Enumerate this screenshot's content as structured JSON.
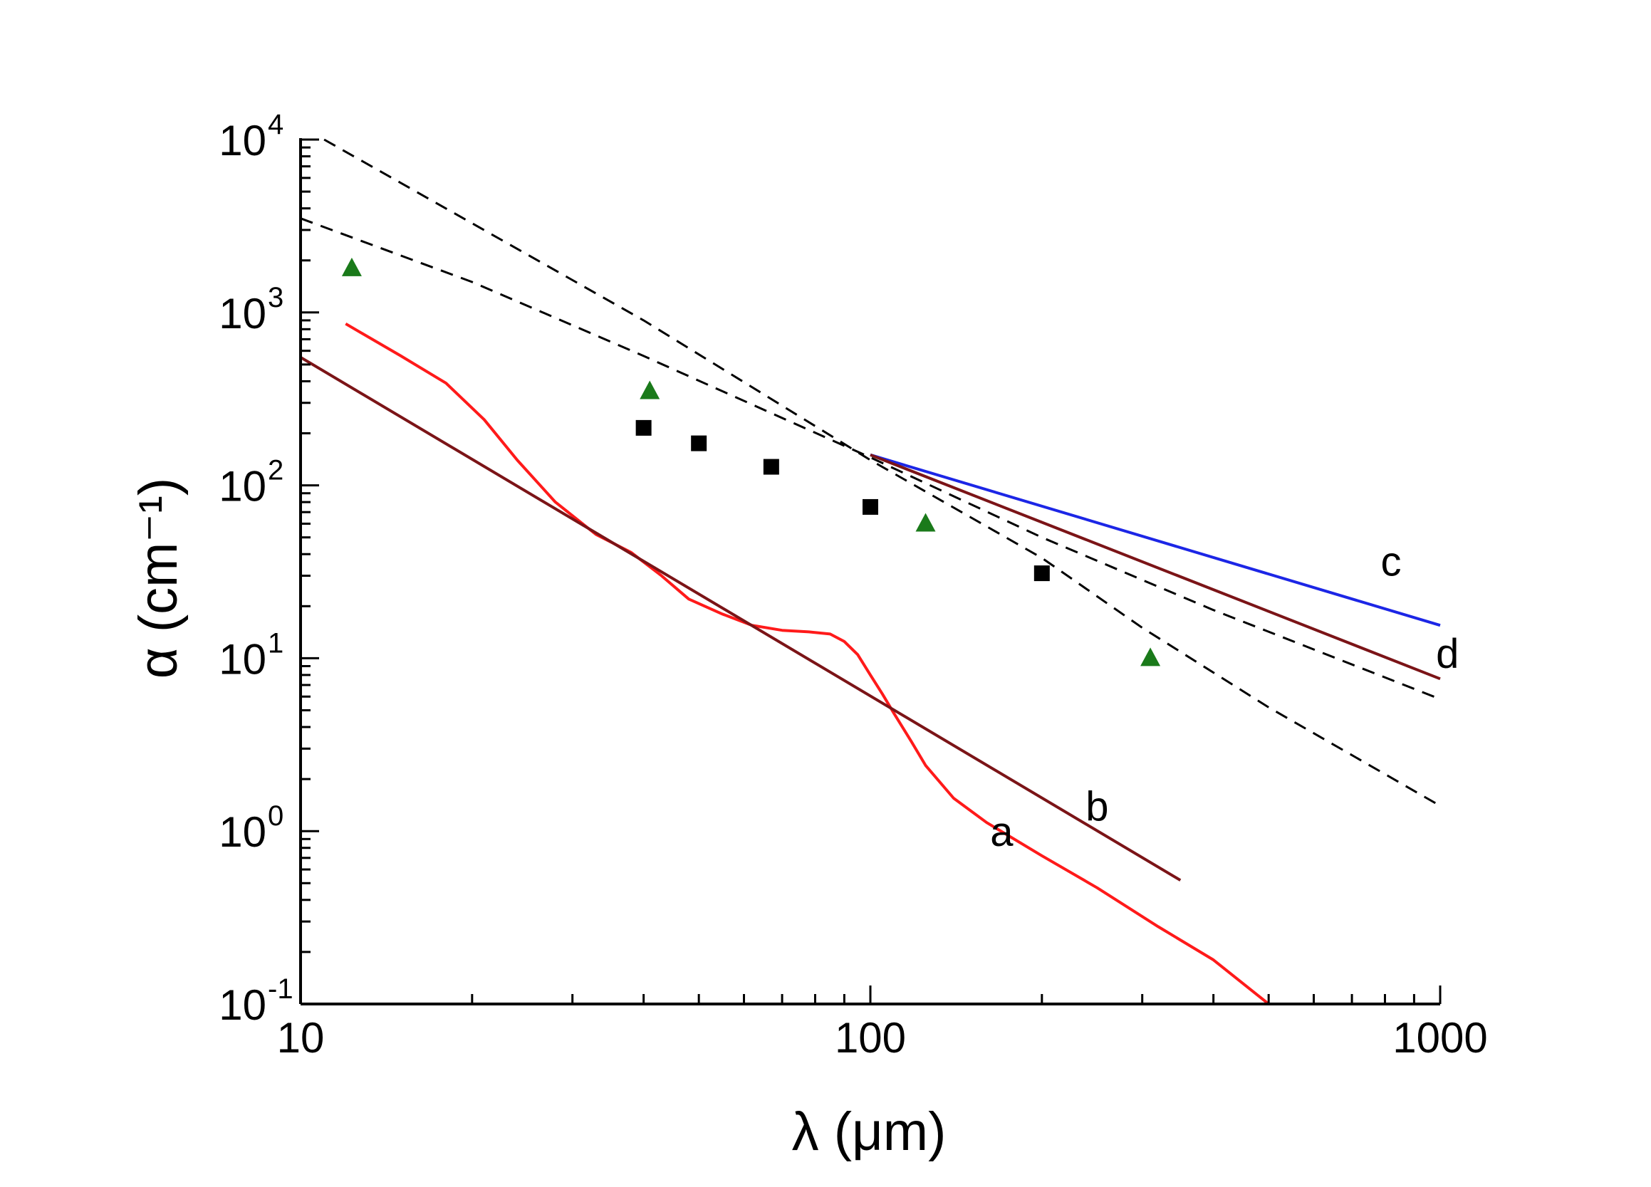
{
  "chart_data": {
    "type": "line",
    "title": "",
    "xlabel": "λ (μm)",
    "ylabel": "α (cm⁻¹)",
    "xscale": "log",
    "yscale": "log",
    "xlim": [
      10,
      1000
    ],
    "ylim": [
      0.1,
      10000
    ],
    "x_ticks": [
      {
        "value": 10,
        "label": "10"
      },
      {
        "value": 100,
        "label": "100"
      },
      {
        "value": 1000,
        "label": "1000"
      }
    ],
    "y_ticks": [
      {
        "value": 0.1,
        "base": "10",
        "exp": "-1"
      },
      {
        "value": 1,
        "base": "10",
        "exp": "0"
      },
      {
        "value": 10,
        "base": "10",
        "exp": "1"
      },
      {
        "value": 100,
        "base": "10",
        "exp": "2"
      },
      {
        "value": 1000,
        "base": "10",
        "exp": "3"
      },
      {
        "value": 10000,
        "base": "10",
        "exp": "4"
      }
    ],
    "series": [
      {
        "name": "a",
        "style": "solid",
        "color": "#ff1a1a",
        "x": [
          12,
          15,
          18,
          21,
          24,
          28,
          33,
          38,
          43,
          48,
          55,
          62,
          70,
          78,
          85,
          90,
          95,
          100,
          105,
          110,
          118,
          125,
          140,
          160,
          200,
          250,
          320,
          400,
          500
        ],
        "y": [
          860,
          560,
          390,
          240,
          140,
          80,
          52,
          41,
          30,
          22,
          18,
          15.5,
          14.5,
          14.2,
          13.8,
          12.5,
          10.5,
          8,
          6.2,
          4.8,
          3.3,
          2.4,
          1.55,
          1.12,
          0.72,
          0.47,
          0.28,
          0.18,
          0.1
        ]
      },
      {
        "name": "b",
        "style": "solid",
        "color": "#7b1417",
        "x": [
          10,
          350
        ],
        "y": [
          550,
          0.52
        ]
      },
      {
        "name": "c",
        "style": "solid",
        "color": "#1c26e6",
        "x": [
          100,
          1000
        ],
        "y": [
          150,
          15.5
        ]
      },
      {
        "name": "d",
        "style": "solid",
        "color": "#7b1417",
        "x": [
          100,
          1000
        ],
        "y": [
          150,
          7.6
        ]
      },
      {
        "name": "dashed-upper",
        "style": "dashed",
        "color": "#000000",
        "x": [
          11,
          40,
          100,
          200,
          300,
          500,
          1000
        ],
        "y": [
          10000,
          900,
          140,
          38,
          15,
          5.2,
          1.4
        ]
      },
      {
        "name": "dashed-lower",
        "style": "dashed",
        "color": "#000000",
        "x": [
          10,
          20,
          40,
          100,
          200,
          400,
          1000
        ],
        "y": [
          3500,
          1500,
          560,
          145,
          50,
          19,
          5.8
        ]
      },
      {
        "name": "squares",
        "style": "markers",
        "marker": "square",
        "color": "#000000",
        "x": [
          40,
          50,
          67,
          100,
          200
        ],
        "y": [
          215,
          175,
          128,
          75,
          31
        ]
      },
      {
        "name": "triangles",
        "style": "markers",
        "marker": "triangle",
        "color": "#1a7a1a",
        "x": [
          12.3,
          41,
          125,
          310
        ],
        "y": [
          1800,
          350,
          60,
          10
        ]
      }
    ],
    "annotations": [
      {
        "text": "a",
        "x": 170,
        "y": 0.82
      },
      {
        "text": "b",
        "x": 250,
        "y": 1.15
      },
      {
        "text": "c",
        "x": 820,
        "y": 30
      },
      {
        "text": "d",
        "x": 1030,
        "y": 8.8
      }
    ],
    "grid": false,
    "legend": "none"
  }
}
